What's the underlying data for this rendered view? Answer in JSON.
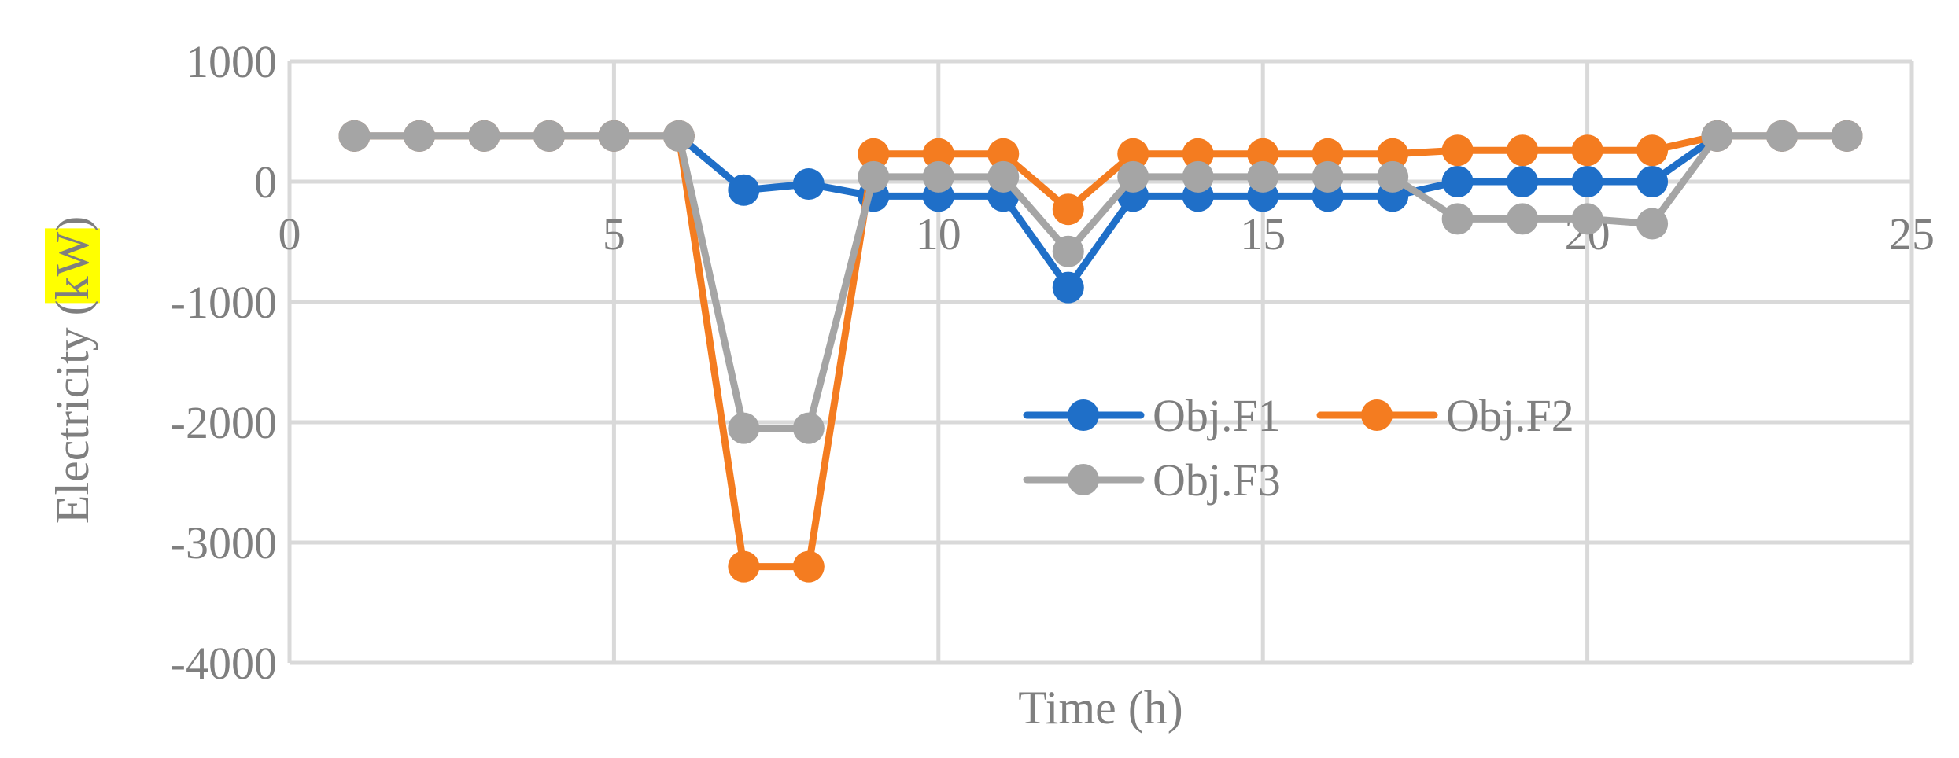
{
  "chart_data": {
    "type": "line",
    "title": "",
    "xlabel": "Time (h)",
    "ylabel_parts": {
      "before": "Electricity (",
      "highlighted": "kW",
      "after": ")"
    },
    "xlim": [
      0,
      25
    ],
    "ylim": [
      -4000,
      1000
    ],
    "xticks": [
      0,
      5,
      10,
      15,
      20,
      25
    ],
    "yticks": [
      1000,
      0,
      -1000,
      -2000,
      -3000,
      -4000
    ],
    "grid": true,
    "legend_position": "center-right",
    "x": [
      1,
      2,
      3,
      4,
      5,
      6,
      7,
      8,
      9,
      10,
      11,
      12,
      13,
      14,
      15,
      16,
      17,
      18,
      19,
      20,
      21,
      22,
      23,
      24
    ],
    "series": [
      {
        "name": "Obj.F1",
        "color": "#1f6fc8",
        "values": [
          380,
          380,
          380,
          380,
          380,
          380,
          -70,
          -20,
          -120,
          -120,
          -120,
          -880,
          -120,
          -120,
          -120,
          -120,
          -120,
          0,
          0,
          0,
          0,
          380,
          380,
          380
        ]
      },
      {
        "name": "Obj.F2",
        "color": "#f47c20",
        "values": [
          380,
          380,
          380,
          380,
          380,
          380,
          -3200,
          -3200,
          230,
          230,
          230,
          -230,
          230,
          230,
          230,
          230,
          230,
          260,
          260,
          260,
          260,
          380,
          380,
          380
        ]
      },
      {
        "name": "Obj.F3",
        "color": "#a5a5a5",
        "values": [
          380,
          380,
          380,
          380,
          380,
          380,
          -2050,
          -2050,
          40,
          40,
          40,
          -580,
          40,
          40,
          40,
          40,
          40,
          -310,
          -310,
          -310,
          -350,
          380,
          380,
          380
        ]
      }
    ]
  }
}
